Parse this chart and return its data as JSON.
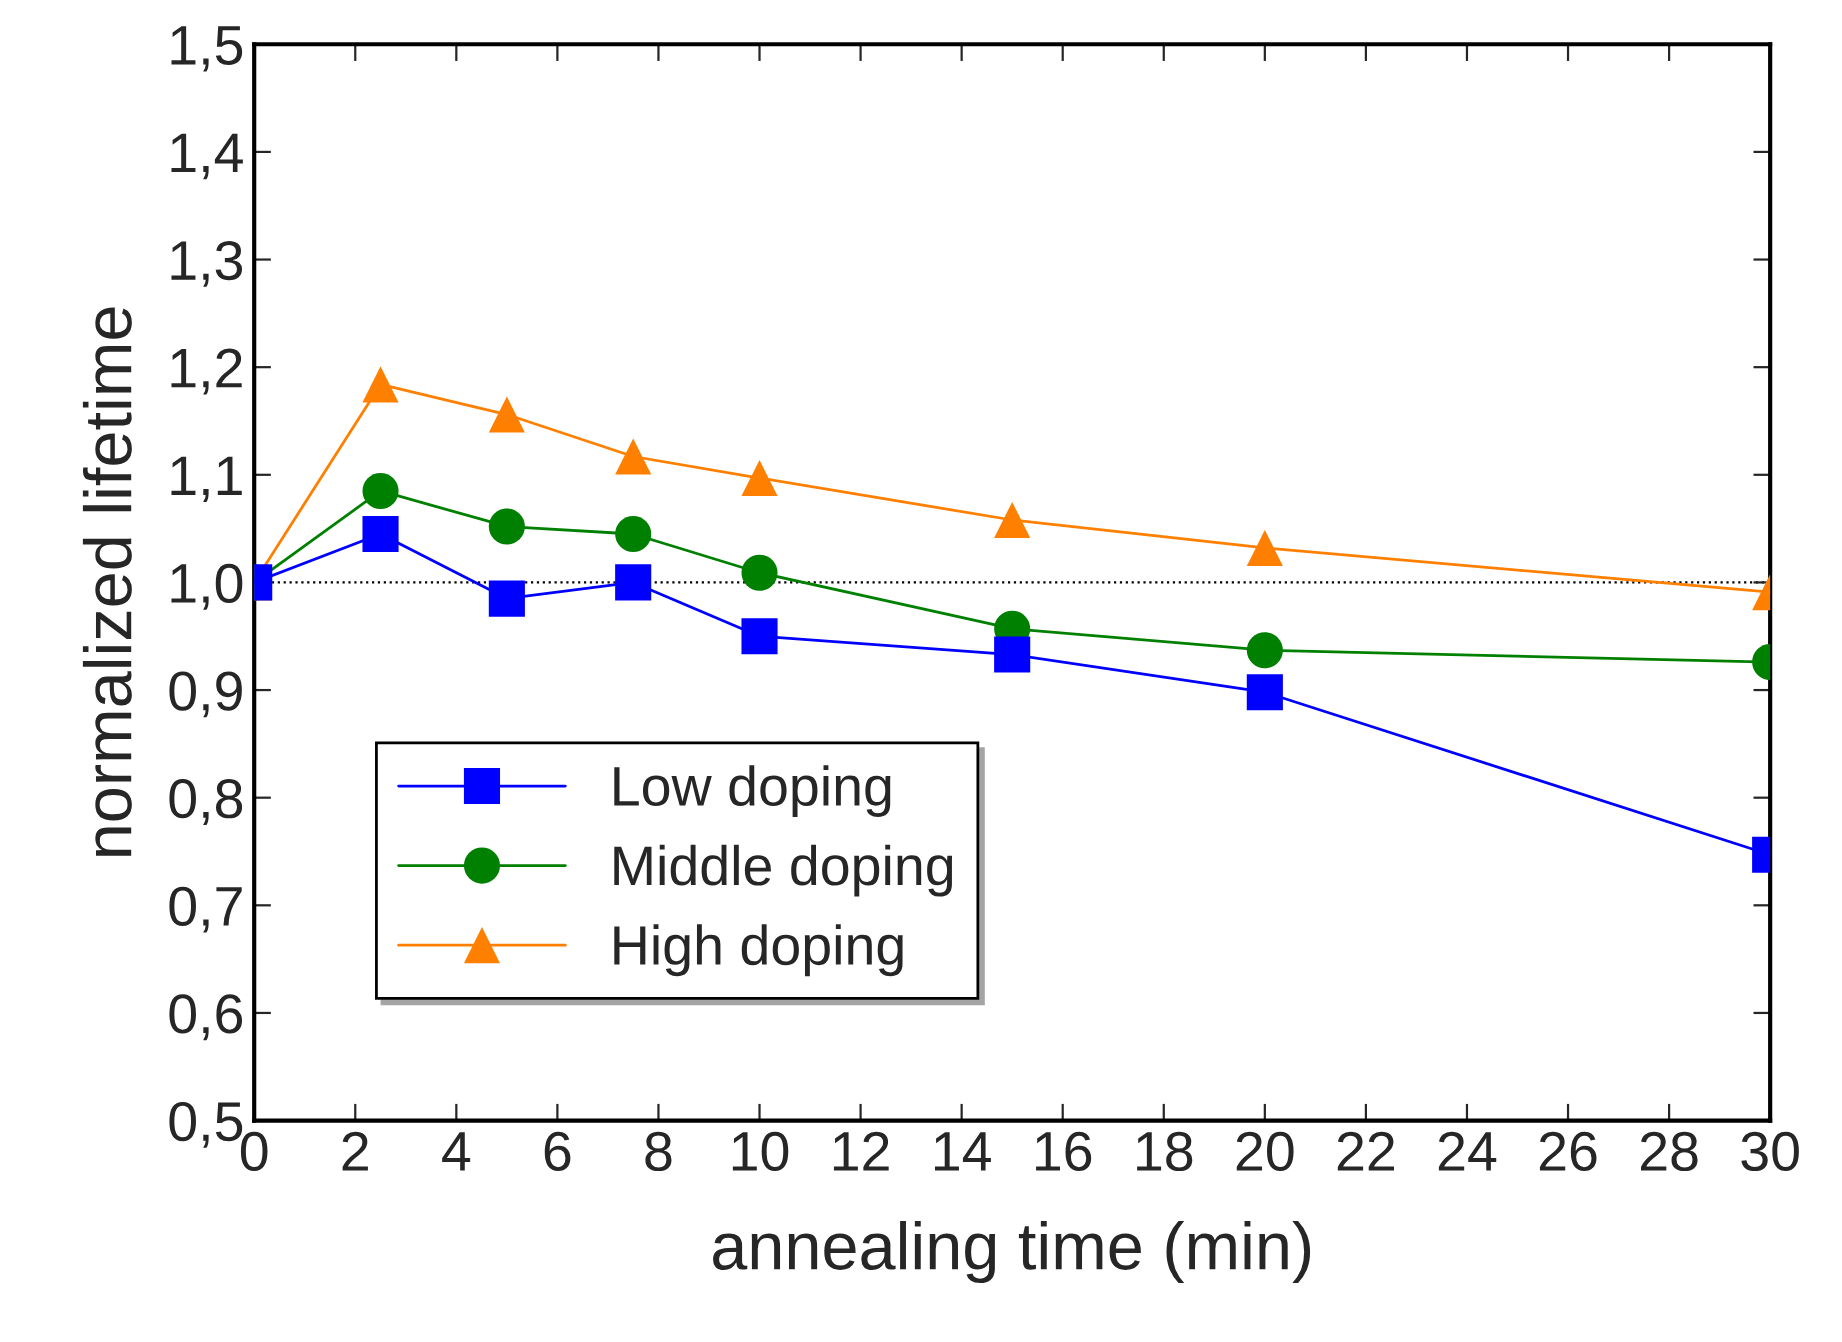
{
  "chart_data": {
    "type": "line",
    "xlabel": "annealing time (min)",
    "ylabel": "normalized lifetime",
    "xlim": [
      0,
      30
    ],
    "xticks": [
      0,
      2,
      4,
      6,
      8,
      10,
      12,
      14,
      16,
      18,
      20,
      22,
      24,
      26,
      28,
      30
    ],
    "ylim": [
      0.5,
      1.5
    ],
    "yticks": [
      {
        "value": 0.5,
        "label": "0,5"
      },
      {
        "value": 0.6,
        "label": "0,6"
      },
      {
        "value": 0.7,
        "label": "0,7"
      },
      {
        "value": 0.8,
        "label": "0,8"
      },
      {
        "value": 0.9,
        "label": "0,9"
      },
      {
        "value": 1.0,
        "label": "1,0"
      },
      {
        "value": 1.1,
        "label": "1,1"
      },
      {
        "value": 1.2,
        "label": "1,2"
      },
      {
        "value": 1.3,
        "label": "1,3"
      },
      {
        "value": 1.4,
        "label": "1,4"
      },
      {
        "value": 1.5,
        "label": "1,5"
      }
    ],
    "x": [
      0,
      2.5,
      5,
      7.5,
      10,
      15,
      20,
      30
    ],
    "series": [
      {
        "name": "Low doping",
        "color": "#0000ff",
        "marker": "square",
        "values": [
          1.0,
          1.045,
          0.985,
          1.0,
          0.95,
          0.933,
          0.898,
          0.747
        ]
      },
      {
        "name": "Middle doping",
        "color": "#008000",
        "marker": "circle",
        "values": [
          1.0,
          1.085,
          1.052,
          1.045,
          1.009,
          0.957,
          0.937,
          0.926
        ]
      },
      {
        "name": "High doping",
        "color": "#ff8000",
        "marker": "triangle",
        "values": [
          1.0,
          1.184,
          1.156,
          1.117,
          1.097,
          1.058,
          1.032,
          0.991
        ]
      }
    ],
    "ref_lines": [
      {
        "axis": "y",
        "value": 1.0,
        "color": "#000000",
        "line_style": "dotted"
      }
    ],
    "grid": false,
    "legend": "bottom left"
  }
}
